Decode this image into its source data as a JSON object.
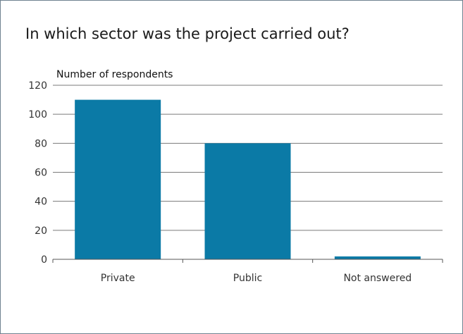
{
  "chart_data": {
    "type": "bar",
    "title": "In which sector was the project carried out?",
    "ylabel": "Number of respondents",
    "xlabel": "",
    "categories": [
      "Private",
      "Public",
      "Not answered"
    ],
    "values": [
      110,
      80,
      2
    ],
    "ylim": [
      0,
      120
    ],
    "yticks": [
      0,
      20,
      40,
      60,
      80,
      100,
      120
    ],
    "grid": true,
    "bar_color": "#0b7aa6",
    "grid_color": "#7a7a7a"
  }
}
